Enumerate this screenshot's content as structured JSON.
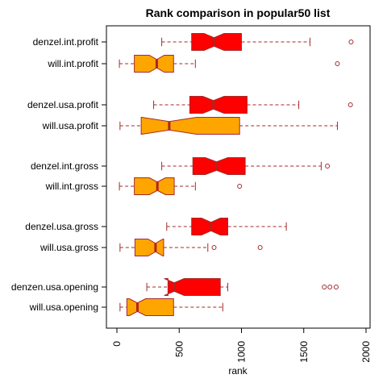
{
  "chart_data": {
    "type": "boxplot",
    "orientation": "horizontal",
    "notched": true,
    "title": "Rank comparison in popular50 list",
    "xlabel": "rank",
    "ylabel": "",
    "xlim": [
      -50,
      2025
    ],
    "xticks": [
      0,
      500,
      1000,
      1500,
      2000
    ],
    "grid": false,
    "legend": "none",
    "colors": {
      "denzel": "#ff0000",
      "will": "#ffa500",
      "median": "#b22222",
      "border": "#a52a2a"
    },
    "boxes": [
      {
        "label": "denzel.int.profit",
        "group": "denzel",
        "min": 360,
        "q1": 600,
        "median": 780,
        "q3": 1000,
        "max": 1550,
        "notch_low": 700,
        "notch_high": 860,
        "outliers": [
          1880
        ]
      },
      {
        "label": "will.int.profit",
        "group": "will",
        "min": 20,
        "q1": 140,
        "median": 320,
        "q3": 455,
        "max": 630,
        "notch_low": 260,
        "notch_high": 380,
        "outliers": [
          1770
        ]
      },
      {
        "label": "denzel.usa.profit",
        "group": "denzel",
        "min": 295,
        "q1": 585,
        "median": 775,
        "q3": 1045,
        "max": 1460,
        "notch_low": 690,
        "notch_high": 860,
        "outliers": [
          1875
        ]
      },
      {
        "label": "will.usa.profit",
        "group": "will",
        "min": 25,
        "q1": 195,
        "median": 420,
        "q3": 985,
        "max": 1770,
        "notch_low": 200,
        "notch_high": 640,
        "outliers": []
      },
      {
        "label": "denzel.int.gross",
        "group": "denzel",
        "min": 360,
        "q1": 610,
        "median": 800,
        "q3": 1030,
        "max": 1640,
        "notch_low": 710,
        "notch_high": 890,
        "outliers": [
          1690
        ]
      },
      {
        "label": "will.int.gross",
        "group": "will",
        "min": 20,
        "q1": 140,
        "median": 325,
        "q3": 460,
        "max": 630,
        "notch_low": 260,
        "notch_high": 390,
        "outliers": [
          985
        ]
      },
      {
        "label": "denzel.usa.gross",
        "group": "denzel",
        "min": 400,
        "q1": 600,
        "median": 755,
        "q3": 890,
        "max": 1360,
        "notch_low": 680,
        "notch_high": 830,
        "outliers": []
      },
      {
        "label": "will.usa.gross",
        "group": "will",
        "min": 25,
        "q1": 145,
        "median": 310,
        "q3": 375,
        "max": 730,
        "notch_low": 250,
        "notch_high": 370,
        "outliers": [
          780,
          1150
        ]
      },
      {
        "label": "denzen.usa.opening",
        "group": "denzel",
        "min": 240,
        "q1": 410,
        "median": 460,
        "q3": 830,
        "max": 890,
        "notch_low": 380,
        "notch_high": 540,
        "outliers": [
          1665,
          1710,
          1760
        ]
      },
      {
        "label": "will.usa.opening",
        "group": "will",
        "min": 25,
        "q1": 80,
        "median": 165,
        "q3": 455,
        "max": 850,
        "notch_low": 100,
        "notch_high": 230,
        "outliers": []
      }
    ]
  }
}
